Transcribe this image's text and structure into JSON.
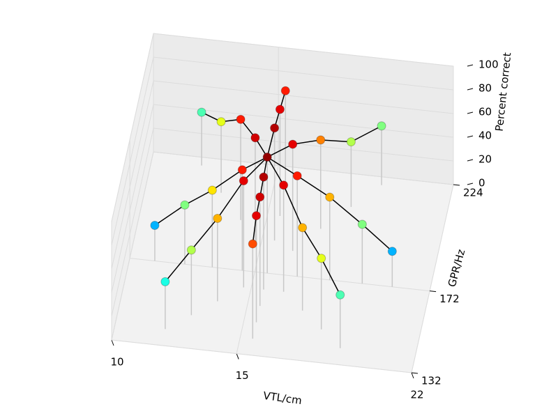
{
  "chart_data": {
    "type": "scatter3d",
    "xlabel": "VTL/cm",
    "ylabel": "GPR/Hz",
    "zlabel": "Percent correct",
    "xlim": [
      10,
      22
    ],
    "xticks": [
      10,
      15,
      22
    ],
    "ylim": [
      132,
      224
    ],
    "yticks": [
      132,
      172,
      224
    ],
    "zlim": [
      0,
      100
    ],
    "zticks": [
      0,
      20,
      40,
      60,
      80,
      100
    ],
    "grid": true,
    "center": {
      "x": 15.5,
      "y": 172,
      "z": 98
    },
    "series": [
      {
        "x": [
          14.7,
          13.8,
          12.9,
          12
        ],
        "y": [
          164,
          156,
          148,
          140
        ],
        "z": [
          90,
          70,
          55,
          40
        ]
      },
      {
        "x": [
          14.5,
          13.3,
          12.2,
          11
        ],
        "y": [
          172,
          172,
          172,
          172
        ],
        "z": [
          85,
          65,
          50,
          30
        ]
      },
      {
        "x": [
          14.8,
          14,
          13,
          12
        ],
        "y": [
          184,
          196,
          208,
          220
        ],
        "z": [
          92,
          85,
          60,
          45
        ]
      },
      {
        "x": [
          15.5,
          15.5,
          15.5
        ],
        "y": [
          188,
          200,
          212
        ],
        "z": [
          95,
          90,
          85
        ]
      },
      {
        "x": [
          16.3,
          17.2,
          18.2,
          19.2
        ],
        "y": [
          184,
          196,
          208,
          220
        ],
        "z": [
          90,
          75,
          55,
          50
        ]
      },
      {
        "x": [
          16.7,
          18,
          19.3,
          20.5
        ],
        "y": [
          172,
          172,
          172,
          172
        ],
        "z": [
          85,
          70,
          50,
          30
        ]
      },
      {
        "x": [
          16.3,
          17.2,
          18.1,
          19
        ],
        "y": [
          164,
          156,
          148,
          140
        ],
        "z": [
          90,
          70,
          60,
          45
        ]
      },
      {
        "x": [
          15.5,
          15.5,
          15.5,
          15.5
        ],
        "y": [
          164,
          156,
          148,
          140
        ],
        "z": [
          95,
          92,
          90,
          80
        ]
      }
    ]
  }
}
